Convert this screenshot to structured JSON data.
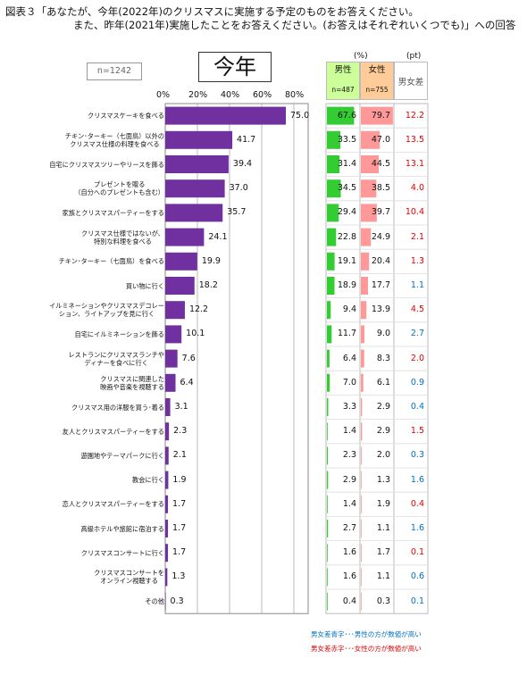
{
  "title": {
    "line1": "図表３「あなたが、今年(2022年)のクリスマスに実施する予定のものをお答えください。",
    "line2": "また、昨年(2021年)実施したことをお答えください。(お答えはそれぞれいくつでも)」への回答"
  },
  "sample_label": "n=1242",
  "panel_title": "今年",
  "unit_pct": "(%)",
  "unit_pt": "(pt)",
  "headers": {
    "male": "男性",
    "male_n": "n=487",
    "female": "女性",
    "female_n": "n=755",
    "diff": "男女差"
  },
  "legend": {
    "blue": "男女差青字･･･男性の方が数値が高い",
    "red": "男女差赤字･･･女性の方が数値が高い"
  },
  "colors": {
    "bar": "#7030a0",
    "male": "#33cc33",
    "female": "#ff9999",
    "male_header": "#ccff99",
    "female_header": "#ffcc99",
    "blue": "#0070c0",
    "red": "#e00000"
  },
  "chart_data": {
    "type": "bar",
    "orientation": "horizontal",
    "xlim": [
      0,
      80
    ],
    "x_ticks": [
      "0%",
      "20%",
      "40%",
      "60%",
      "80%"
    ],
    "grid": true,
    "categories": [
      "クリスマスケーキを食べる",
      "チキン･ターキー（七面鳥）以外の\nクリスマス仕様の料理を食べる",
      "自宅にクリスマスツリーやリースを飾る",
      "プレゼントを贈る\n（自分へのプレゼントも含む）",
      "家族とクリスマスパーティーをする",
      "クリスマス仕様ではないが、\n特別な料理を食べる",
      "チキン･ターキー（七面鳥）を食べる",
      "買い物に行く",
      "イルミネーションやクリスマスデコレー\nション、ライトアップを見に行く",
      "自宅にイルミネーションを飾る",
      "レストランにクリスマスランチや\nディナーを食べに行く",
      "クリスマスに関連した\n映画や音楽を視聴する",
      "クリスマス用の洋服を買う･着る",
      "友人とクリスマスパーティーをする",
      "遊園地やテーマパークに行く",
      "教会に行く",
      "恋人とクリスマスパーティーをする",
      "高級ホテルや旅館に宿泊する",
      "クリスマスコンサートに行く",
      "クリスマスコンサートを\nオンライン視聴する",
      "その他"
    ],
    "series": [
      {
        "values": [
          75.0,
          41.7,
          39.4,
          37.0,
          35.7,
          24.1,
          19.9,
          18.2,
          12.2,
          10.1,
          7.6,
          6.4,
          3.1,
          2.3,
          2.1,
          1.9,
          1.7,
          1.7,
          1.7,
          1.3,
          0.3
        ]
      },
      {
        "name": "男性",
        "values": [
          67.6,
          33.5,
          31.4,
          34.5,
          29.4,
          22.8,
          19.1,
          18.9,
          9.4,
          11.7,
          6.4,
          7.0,
          3.3,
          1.4,
          2.3,
          2.9,
          1.4,
          2.7,
          1.6,
          1.6,
          0.4
        ]
      },
      {
        "name": "女性",
        "values": [
          79.7,
          47.0,
          44.5,
          38.5,
          39.7,
          24.9,
          20.4,
          17.7,
          13.9,
          9.0,
          8.3,
          6.1,
          2.9,
          2.9,
          2.0,
          1.3,
          1.9,
          1.1,
          1.7,
          1.1,
          0.3
        ]
      },
      {
        "name": "男女差",
        "values": [
          12.2,
          13.5,
          13.1,
          4.0,
          10.4,
          2.1,
          1.3,
          1.1,
          4.5,
          2.7,
          2.0,
          0.9,
          0.4,
          1.5,
          0.3,
          1.6,
          0.4,
          1.6,
          0.1,
          0.6,
          0.1
        ],
        "higher": [
          "female",
          "female",
          "female",
          "female",
          "female",
          "female",
          "female",
          "male",
          "female",
          "male",
          "female",
          "male",
          "male",
          "female",
          "male",
          "male",
          "female",
          "male",
          "female",
          "male",
          "male"
        ]
      }
    ]
  }
}
